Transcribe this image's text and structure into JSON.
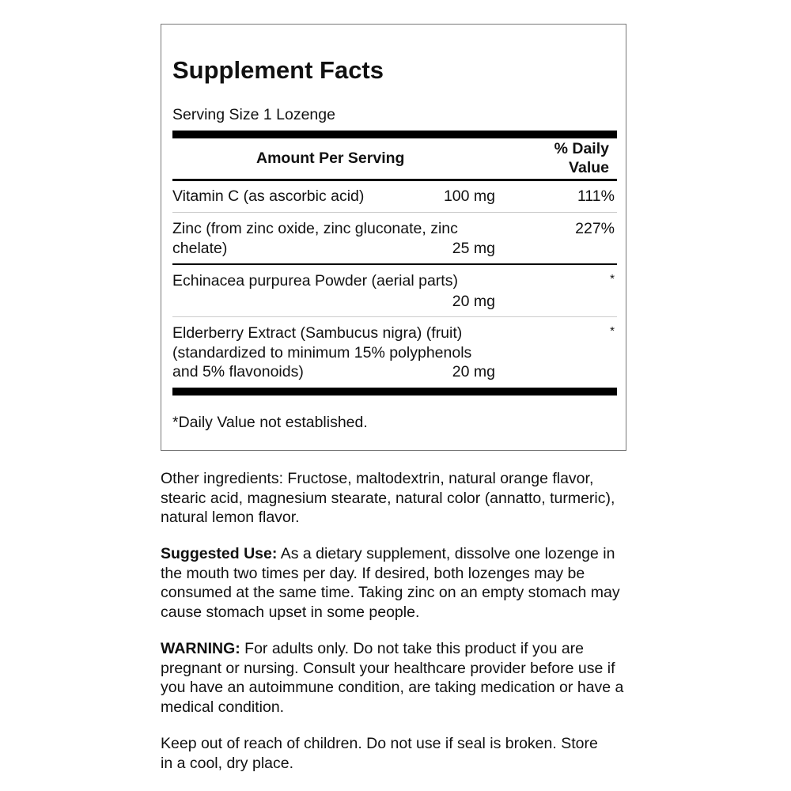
{
  "title": "Supplement Facts",
  "serving_size": "Serving Size 1 Lozenge",
  "header": {
    "amount": "Amount Per Serving",
    "dv_line1": "% Daily",
    "dv_line2": "Value"
  },
  "rows": [
    {
      "name_lines": [
        "Vitamin C (as ascorbic acid)"
      ],
      "amount": "100 mg",
      "dv": "111%"
    },
    {
      "name_lines": [
        "Zinc (from zinc oxide, zinc gluconate, zinc",
        "chelate)"
      ],
      "amount": "25 mg",
      "dv": "227%"
    },
    {
      "name_lines": [
        "Echinacea purpurea Powder (aerial parts)"
      ],
      "amount": "20 mg",
      "dv": "*"
    },
    {
      "name_lines": [
        "Elderberry Extract (Sambucus nigra) (fruit)",
        "(standardized to minimum 15% polyphenols",
        "and 5% flavonoids)"
      ],
      "amount": "20 mg",
      "dv": "*"
    }
  ],
  "footnote": "*Daily Value not established.",
  "other_ingredients": "Other ingredients: Fructose, maltodextrin, natural orange flavor, stearic acid, magnesium stearate, natural color (annatto, turmeric), natural lemon flavor.",
  "suggested_use": {
    "label": "Suggested Use:",
    "text": " As a dietary supplement, dissolve one lozenge in the mouth two times per day. If desired, both lozenges may be consumed at the same time. Taking zinc on an empty stomach may cause stomach upset in some people."
  },
  "warning": {
    "label": "WARNING:",
    "text": " For adults only. Do not take this product if you are pregnant or nursing. Consult your healthcare provider before use if you have an autoimmune condition, are taking medication or have a medical condition."
  },
  "storage": "Keep out of reach of children. Do not use if seal is broken. Store in a cool, dry place."
}
